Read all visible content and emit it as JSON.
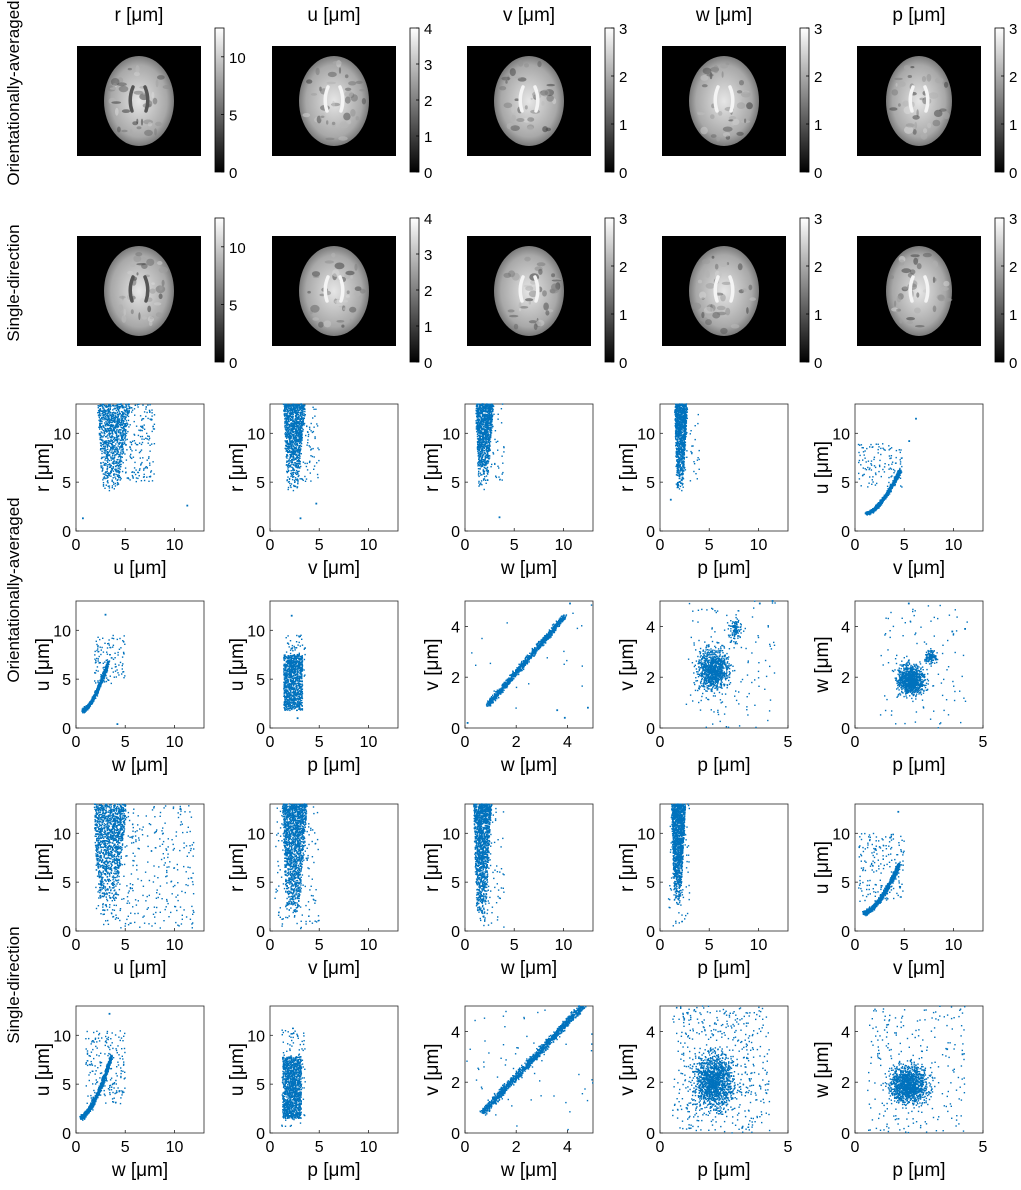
{
  "figure": {
    "row_labels": [
      "Orientationally-averaged",
      "Single-direction"
    ]
  },
  "images": {
    "columns": [
      {
        "title": "r [μm]",
        "colorbar": {
          "min": 0,
          "max": 12.5,
          "ticks": [
            0,
            5,
            10
          ]
        }
      },
      {
        "title": "u [μm]",
        "colorbar": {
          "min": 0,
          "max": 4,
          "ticks": [
            0,
            1,
            2,
            3,
            4
          ]
        }
      },
      {
        "title": "v [μm]",
        "colorbar": {
          "min": 0,
          "max": 3,
          "ticks": [
            0,
            1,
            2,
            3
          ]
        }
      },
      {
        "title": "w [μm]",
        "colorbar": {
          "min": 0,
          "max": 3,
          "ticks": [
            0,
            1,
            2,
            3
          ]
        }
      },
      {
        "title": "p [μm]",
        "colorbar": {
          "min": 0,
          "max": 3,
          "ticks": [
            0,
            1,
            2,
            3
          ]
        }
      }
    ],
    "rows": [
      "Orientationally-averaged",
      "Single-direction"
    ],
    "colormap": "gray",
    "content": "axial brain parameter map on black background"
  },
  "chart_data": [
    {
      "type": "scatter",
      "group": "Orientationally-averaged",
      "xlabel": "u [μm]",
      "ylabel": "r [μm]",
      "xlim": [
        0,
        13
      ],
      "ylim": [
        0,
        13
      ],
      "xticks": [
        0,
        5,
        10
      ],
      "yticks": [
        0,
        5,
        10
      ],
      "color": "#0072BD",
      "clusters": [
        {
          "x": [
            2.2,
            5.5
          ],
          "y": [
            3.8,
            13
          ],
          "n": 900,
          "shape": "rect-top"
        },
        {
          "x": [
            3,
            8
          ],
          "y": [
            5,
            13
          ],
          "n": 250,
          "shape": "rect"
        }
      ],
      "points": [
        [
          11.3,
          2.6
        ],
        [
          0.7,
          1.3
        ]
      ]
    },
    {
      "type": "scatter",
      "group": "Orientationally-averaged",
      "xlabel": "v [μm]",
      "ylabel": "r [μm]",
      "xlim": [
        0,
        13
      ],
      "ylim": [
        0,
        13
      ],
      "xticks": [
        0,
        5,
        10
      ],
      "yticks": [
        0,
        5,
        10
      ],
      "color": "#0072BD",
      "clusters": [
        {
          "x": [
            1.4,
            3.6
          ],
          "y": [
            4,
            13
          ],
          "n": 1000,
          "shape": "rect-top"
        },
        {
          "x": [
            2.5,
            5
          ],
          "y": [
            5,
            13
          ],
          "n": 90,
          "shape": "rect"
        }
      ],
      "points": [
        [
          3.1,
          1.3
        ],
        [
          4.7,
          2.8
        ]
      ]
    },
    {
      "type": "scatter",
      "group": "Orientationally-averaged",
      "xlabel": "w [μm]",
      "ylabel": "r [μm]",
      "xlim": [
        0,
        13
      ],
      "ylim": [
        0,
        13
      ],
      "xticks": [
        0,
        5,
        10
      ],
      "yticks": [
        0,
        5,
        10
      ],
      "color": "#0072BD",
      "clusters": [
        {
          "x": [
            1.1,
            2.9
          ],
          "y": [
            4,
            13
          ],
          "n": 1000,
          "shape": "rect-top"
        },
        {
          "x": [
            2.5,
            4
          ],
          "y": [
            5,
            13
          ],
          "n": 40,
          "shape": "rect"
        }
      ],
      "points": [
        [
          3.5,
          1.4
        ]
      ]
    },
    {
      "type": "scatter",
      "group": "Orientationally-averaged",
      "xlabel": "p [μm]",
      "ylabel": "r [μm]",
      "xlim": [
        0,
        13
      ],
      "ylim": [
        0,
        13
      ],
      "xticks": [
        0,
        5,
        10
      ],
      "yticks": [
        0,
        5,
        10
      ],
      "color": "#0072BD",
      "clusters": [
        {
          "x": [
            1.5,
            2.8
          ],
          "y": [
            4,
            13
          ],
          "n": 1000,
          "shape": "rect-top"
        },
        {
          "x": [
            2.5,
            4
          ],
          "y": [
            5,
            13
          ],
          "n": 30,
          "shape": "rect"
        }
      ],
      "points": [
        [
          1.1,
          3.2
        ]
      ]
    },
    {
      "type": "scatter",
      "group": "Orientationally-averaged",
      "xlabel": "v [μm]",
      "ylabel": "u [μm]",
      "xlim": [
        0,
        13
      ],
      "ylim": [
        0,
        13
      ],
      "xticks": [
        0,
        5,
        10
      ],
      "yticks": [
        0,
        5,
        10
      ],
      "color": "#0072BD",
      "clusters": [
        {
          "x": [
            1.2,
            4.6
          ],
          "y": [
            1.8,
            6.2
          ],
          "n": 950,
          "shape": "curve"
        },
        {
          "x": [
            0.3,
            4.8
          ],
          "y": [
            4.5,
            9
          ],
          "n": 120,
          "shape": "rect"
        }
      ],
      "points": [
        [
          6.2,
          11.5
        ],
        [
          5.5,
          9.2
        ]
      ]
    },
    {
      "type": "scatter",
      "group": "Orientationally-averaged",
      "xlabel": "w [μm]",
      "ylabel": "u [μm]",
      "xlim": [
        0,
        13
      ],
      "ylim": [
        0,
        13
      ],
      "xticks": [
        0,
        5,
        10
      ],
      "yticks": [
        0,
        5,
        10
      ],
      "color": "#0072BD",
      "clusters": [
        {
          "x": [
            0.7,
            3.3
          ],
          "y": [
            1.8,
            6.8
          ],
          "n": 950,
          "shape": "curve"
        },
        {
          "x": [
            1.8,
            5
          ],
          "y": [
            4.5,
            9.5
          ],
          "n": 120,
          "shape": "rect"
        }
      ],
      "points": [
        [
          3,
          11.6
        ],
        [
          4.2,
          0.4
        ]
      ]
    },
    {
      "type": "scatter",
      "group": "Orientationally-averaged",
      "xlabel": "p [μm]",
      "ylabel": "u [μm]",
      "xlim": [
        0,
        13
      ],
      "ylim": [
        0,
        13
      ],
      "xticks": [
        0,
        5,
        10
      ],
      "yticks": [
        0,
        5,
        10
      ],
      "color": "#0072BD",
      "clusters": [
        {
          "x": [
            1.4,
            3.3
          ],
          "y": [
            1.8,
            7.5
          ],
          "n": 1000,
          "shape": "rect"
        },
        {
          "x": [
            1.6,
            3.6
          ],
          "y": [
            5,
            9.5
          ],
          "n": 80,
          "shape": "rect"
        }
      ],
      "points": [
        [
          2.2,
          11.5
        ],
        [
          2.8,
          1
        ]
      ]
    },
    {
      "type": "scatter",
      "group": "Orientationally-averaged",
      "xlabel": "w [μm]",
      "ylabel": "v [μm]",
      "xlim": [
        0,
        5
      ],
      "ylim": [
        0,
        5
      ],
      "xticks": [
        0,
        2,
        4
      ],
      "yticks": [
        0,
        2,
        4
      ],
      "color": "#0072BD",
      "clusters": [
        {
          "x": [
            0.9,
            3.9
          ],
          "y": [
            0.9,
            4.4
          ],
          "n": 1100,
          "shape": "line"
        },
        {
          "x": [
            0,
            5
          ],
          "y": [
            0,
            5
          ],
          "n": 25,
          "shape": "rect"
        }
      ],
      "points": [
        [
          4.1,
          4.9
        ],
        [
          3.6,
          0.7
        ],
        [
          3.9,
          0.4
        ],
        [
          4.8,
          0.8
        ],
        [
          0.1,
          0.2
        ]
      ]
    },
    {
      "type": "scatter",
      "group": "Orientationally-averaged",
      "xlabel": "p [μm]",
      "ylabel": "v [μm]",
      "xlim": [
        0,
        5
      ],
      "ylim": [
        0,
        5
      ],
      "xticks": [
        0,
        5
      ],
      "yticks": [
        0,
        2,
        4
      ],
      "color": "#0072BD",
      "clusters": [
        {
          "x": [
            1.2,
            3
          ],
          "y": [
            1,
            3.6
          ],
          "n": 900,
          "shape": "blob"
        },
        {
          "x": [
            2.6,
            3.3
          ],
          "y": [
            3,
            4.6
          ],
          "n": 120,
          "shape": "blob"
        },
        {
          "x": [
            1,
            4.5
          ],
          "y": [
            0,
            5
          ],
          "n": 120,
          "shape": "rect"
        }
      ],
      "points": [
        [
          4.4,
          5
        ],
        [
          3.9,
          4.9
        ]
      ]
    },
    {
      "type": "scatter",
      "group": "Orientationally-averaged",
      "xlabel": "p [μm]",
      "ylabel": "w [μm]",
      "xlim": [
        0,
        5
      ],
      "ylim": [
        0,
        5
      ],
      "xticks": [
        0,
        5
      ],
      "yticks": [
        0,
        2,
        4
      ],
      "color": "#0072BD",
      "clusters": [
        {
          "x": [
            1.4,
            3
          ],
          "y": [
            1,
            2.8
          ],
          "n": 900,
          "shape": "blob"
        },
        {
          "x": [
            2.6,
            3.3
          ],
          "y": [
            2.4,
            3.2
          ],
          "n": 120,
          "shape": "blob"
        },
        {
          "x": [
            1,
            4.5
          ],
          "y": [
            0,
            5
          ],
          "n": 100,
          "shape": "rect"
        }
      ],
      "points": [
        [
          2.1,
          4.9
        ],
        [
          4.3,
          3.9
        ],
        [
          3.8,
          3.8
        ]
      ]
    },
    {
      "type": "scatter",
      "group": "Single-direction",
      "xlabel": "u [μm]",
      "ylabel": "r [μm]",
      "xlim": [
        0,
        13
      ],
      "ylim": [
        0,
        13
      ],
      "xticks": [
        0,
        5,
        10
      ],
      "yticks": [
        0,
        5,
        10
      ],
      "color": "#0072BD",
      "clusters": [
        {
          "x": [
            1.8,
            5.2
          ],
          "y": [
            1.5,
            13
          ],
          "n": 1200,
          "shape": "rect-top"
        },
        {
          "x": [
            2,
            12
          ],
          "y": [
            0.3,
            13
          ],
          "n": 350,
          "shape": "rect"
        }
      ],
      "points": []
    },
    {
      "type": "scatter",
      "group": "Single-direction",
      "xlabel": "v [μm]",
      "ylabel": "r [μm]",
      "xlim": [
        0,
        13
      ],
      "ylim": [
        0,
        13
      ],
      "xticks": [
        0,
        5,
        10
      ],
      "yticks": [
        0,
        5,
        10
      ],
      "color": "#0072BD",
      "clusters": [
        {
          "x": [
            1.3,
            3.8
          ],
          "y": [
            1,
            13
          ],
          "n": 1400,
          "shape": "rect-top"
        },
        {
          "x": [
            0.5,
            5
          ],
          "y": [
            0,
            13
          ],
          "n": 150,
          "shape": "rect"
        }
      ],
      "points": []
    },
    {
      "type": "scatter",
      "group": "Single-direction",
      "xlabel": "w [μm]",
      "ylabel": "r [μm]",
      "xlim": [
        0,
        13
      ],
      "ylim": [
        0,
        13
      ],
      "xticks": [
        0,
        5,
        10
      ],
      "yticks": [
        0,
        5,
        10
      ],
      "color": "#0072BD",
      "clusters": [
        {
          "x": [
            0.9,
            2.7
          ],
          "y": [
            0.5,
            13
          ],
          "n": 1300,
          "shape": "rect-top"
        },
        {
          "x": [
            1.5,
            4
          ],
          "y": [
            0,
            13
          ],
          "n": 80,
          "shape": "rect"
        }
      ],
      "points": []
    },
    {
      "type": "scatter",
      "group": "Single-direction",
      "xlabel": "p [μm]",
      "ylabel": "r [μm]",
      "xlim": [
        0,
        13
      ],
      "ylim": [
        0,
        13
      ],
      "xticks": [
        0,
        5,
        10
      ],
      "yticks": [
        0,
        5,
        10
      ],
      "color": "#0072BD",
      "clusters": [
        {
          "x": [
            1.2,
            2.6
          ],
          "y": [
            2.5,
            13
          ],
          "n": 1300,
          "shape": "rect-top"
        },
        {
          "x": [
            0.8,
            3
          ],
          "y": [
            0.5,
            13
          ],
          "n": 80,
          "shape": "rect"
        }
      ],
      "points": []
    },
    {
      "type": "scatter",
      "group": "Single-direction",
      "xlabel": "v [μm]",
      "ylabel": "u [μm]",
      "xlim": [
        0,
        13
      ],
      "ylim": [
        0,
        13
      ],
      "xticks": [
        0,
        5,
        10
      ],
      "yticks": [
        0,
        5,
        10
      ],
      "color": "#0072BD",
      "clusters": [
        {
          "x": [
            0.9,
            4.5
          ],
          "y": [
            1.8,
            6.8
          ],
          "n": 1000,
          "shape": "curve"
        },
        {
          "x": [
            0.3,
            5
          ],
          "y": [
            3,
            10
          ],
          "n": 200,
          "shape": "rect"
        }
      ],
      "points": [
        [
          4.4,
          12.2
        ]
      ]
    },
    {
      "type": "scatter",
      "group": "Single-direction",
      "xlabel": "w [μm]",
      "ylabel": "u [μm]",
      "xlim": [
        0,
        13
      ],
      "ylim": [
        0,
        13
      ],
      "xticks": [
        0,
        5,
        10
      ],
      "yticks": [
        0,
        5,
        10
      ],
      "color": "#0072BD",
      "clusters": [
        {
          "x": [
            0.5,
            3.6
          ],
          "y": [
            1.6,
            7.8
          ],
          "n": 1000,
          "shape": "curve"
        },
        {
          "x": [
            1,
            5
          ],
          "y": [
            3,
            10.5
          ],
          "n": 200,
          "shape": "rect"
        }
      ],
      "points": [
        [
          3.4,
          12.2
        ]
      ]
    },
    {
      "type": "scatter",
      "group": "Single-direction",
      "xlabel": "p [μm]",
      "ylabel": "u [μm]",
      "xlim": [
        0,
        13
      ],
      "ylim": [
        0,
        13
      ],
      "xticks": [
        0,
        5,
        10
      ],
      "yticks": [
        0,
        5,
        10
      ],
      "color": "#0072BD",
      "clusters": [
        {
          "x": [
            1.3,
            3.2
          ],
          "y": [
            1.5,
            7.8
          ],
          "n": 1100,
          "shape": "rect"
        },
        {
          "x": [
            1.2,
            3.6
          ],
          "y": [
            0.6,
            11
          ],
          "n": 150,
          "shape": "rect"
        }
      ],
      "points": []
    },
    {
      "type": "scatter",
      "group": "Single-direction",
      "xlabel": "w [μm]",
      "ylabel": "v [μm]",
      "xlim": [
        0,
        5
      ],
      "ylim": [
        0,
        5
      ],
      "xticks": [
        0,
        2,
        4
      ],
      "yticks": [
        0,
        2,
        4
      ],
      "color": "#0072BD",
      "clusters": [
        {
          "x": [
            0.7,
            4.6
          ],
          "y": [
            0.8,
            5
          ],
          "n": 1300,
          "shape": "line"
        },
        {
          "x": [
            0,
            5
          ],
          "y": [
            0,
            5
          ],
          "n": 60,
          "shape": "rect"
        }
      ],
      "points": []
    },
    {
      "type": "scatter",
      "group": "Single-direction",
      "xlabel": "p [μm]",
      "ylabel": "v [μm]",
      "xlim": [
        0,
        5
      ],
      "ylim": [
        0,
        5
      ],
      "xticks": [
        0,
        5
      ],
      "yticks": [
        0,
        2,
        4
      ],
      "color": "#0072BD",
      "clusters": [
        {
          "x": [
            1,
            3.2
          ],
          "y": [
            0.5,
            3.6
          ],
          "n": 1300,
          "shape": "blob"
        },
        {
          "x": [
            0.5,
            4.3
          ],
          "y": [
            0,
            5
          ],
          "n": 500,
          "shape": "rect"
        }
      ],
      "points": []
    },
    {
      "type": "scatter",
      "group": "Single-direction",
      "xlabel": "p [μm]",
      "ylabel": "w [μm]",
      "xlim": [
        0,
        5
      ],
      "ylim": [
        0,
        5
      ],
      "xticks": [
        0,
        5
      ],
      "yticks": [
        0,
        2,
        4
      ],
      "color": "#0072BD",
      "clusters": [
        {
          "x": [
            1,
            3.2
          ],
          "y": [
            0.8,
            3
          ],
          "n": 1200,
          "shape": "blob"
        },
        {
          "x": [
            0.5,
            4.3
          ],
          "y": [
            0,
            5
          ],
          "n": 250,
          "shape": "rect"
        }
      ],
      "points": [
        [
          4.2,
          3.1
        ],
        [
          3.6,
          3.3
        ]
      ]
    }
  ]
}
